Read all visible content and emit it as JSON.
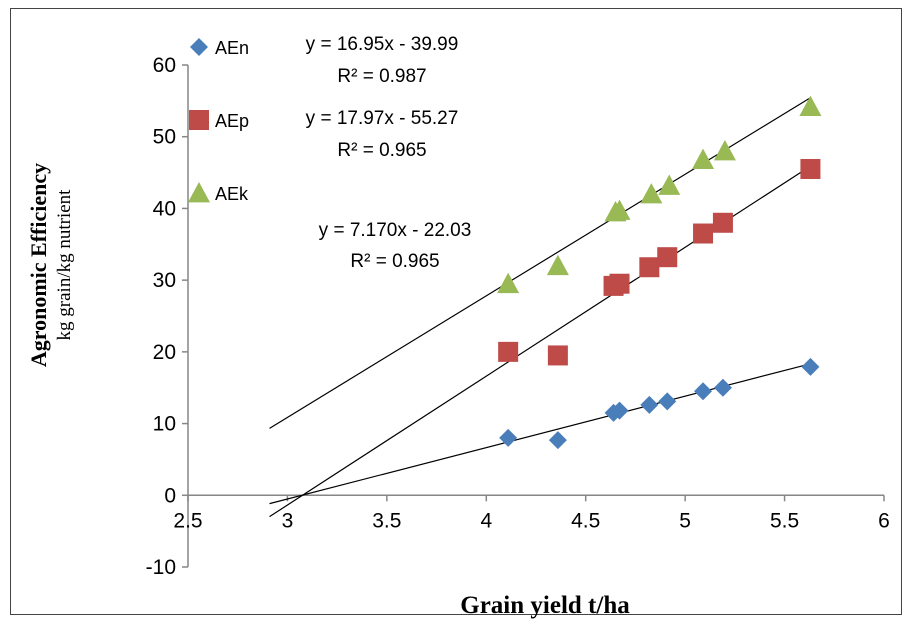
{
  "chart_data": {
    "type": "scatter",
    "xlabel": "Grain yield t/ha",
    "ylabel": "Agronomic Efficiency",
    "ylabel_sub": "kg grain/kg nutrient",
    "xlim": [
      2.5,
      6
    ],
    "ylim": [
      -10,
      60
    ],
    "x_ticks": [
      "2.5",
      "3",
      "3.5",
      "4",
      "4.5",
      "5",
      "5.5",
      "6"
    ],
    "y_ticks": [
      "-10",
      "0",
      "10",
      "20",
      "30",
      "40",
      "50",
      "60"
    ],
    "x_tick_values": [
      2.5,
      3,
      3.5,
      4,
      4.5,
      5,
      5.5,
      6
    ],
    "y_tick_values": [
      -10,
      0,
      10,
      20,
      30,
      40,
      50,
      60
    ],
    "grid": false,
    "legend_position": "top-left",
    "series": [
      {
        "name": "AEn",
        "marker": "diamond",
        "color": "#4a7ebb",
        "x": [
          4.11,
          4.36,
          4.64,
          4.67,
          4.82,
          4.91,
          5.09,
          5.19,
          5.63
        ],
        "y": [
          8.0,
          7.7,
          11.5,
          11.8,
          12.6,
          13.1,
          14.5,
          15.0,
          17.9
        ],
        "trendline": {
          "slope": 7.17,
          "intercept": -22.03,
          "x_range": [
            2.91,
            5.63
          ]
        },
        "equation": "y = 7.170x - 22.03",
        "r2": "R² = 0.965"
      },
      {
        "name": "AEp",
        "marker": "square",
        "color": "#be4b48",
        "x": [
          4.11,
          4.36,
          4.64,
          4.67,
          4.82,
          4.91,
          5.09,
          5.19,
          5.63
        ],
        "y": [
          20.0,
          19.5,
          29.2,
          29.5,
          31.8,
          33.2,
          36.5,
          38.0,
          45.5
        ],
        "trendline": {
          "slope": 16.95,
          "intercept": -39.99,
          "x_range": [
            2.91,
            5.63
          ]
        },
        "equation": "y = 16.95x - 39.99",
        "r2": "R² = 0.987"
      },
      {
        "name": "AEk",
        "marker": "triangle",
        "color": "#98b954",
        "x": [
          4.11,
          4.36,
          4.65,
          4.67,
          4.83,
          4.92,
          5.09,
          5.2,
          5.63
        ],
        "y": [
          29.5,
          32.0,
          39.5,
          39.7,
          42.0,
          43.2,
          46.8,
          48.0,
          54.2
        ],
        "trendline": {
          "slope": 17.97,
          "intercept": -55.27,
          "x_range": [
            2.91,
            5.63
          ]
        },
        "equation": "y = 17.97x - 55.27",
        "r2": "R² = 0.965"
      }
    ]
  }
}
